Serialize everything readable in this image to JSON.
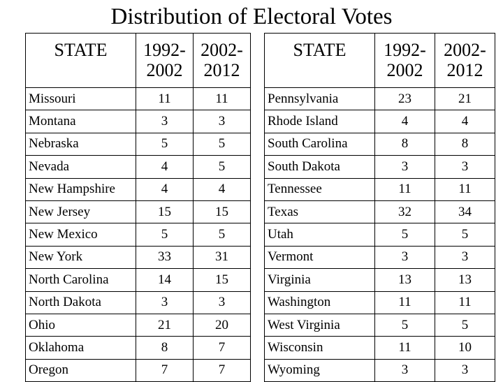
{
  "title": "Distribution of Electoral Votes",
  "headers": {
    "state": "STATE",
    "period1": "1992- 2002",
    "period2": "2002- 2012"
  },
  "left_rows": [
    {
      "state": "Missouri",
      "v1": "11",
      "v2": "11"
    },
    {
      "state": "Montana",
      "v1": "3",
      "v2": "3"
    },
    {
      "state": "Nebraska",
      "v1": "5",
      "v2": "5"
    },
    {
      "state": "Nevada",
      "v1": "4",
      "v2": "5"
    },
    {
      "state": "New Hampshire",
      "v1": "4",
      "v2": "4"
    },
    {
      "state": "New Jersey",
      "v1": "15",
      "v2": "15"
    },
    {
      "state": "New Mexico",
      "v1": "5",
      "v2": "5"
    },
    {
      "state": "New York",
      "v1": "33",
      "v2": "31"
    },
    {
      "state": "North Carolina",
      "v1": "14",
      "v2": "15"
    },
    {
      "state": "North Dakota",
      "v1": "3",
      "v2": "3"
    },
    {
      "state": "Ohio",
      "v1": "21",
      "v2": "20"
    },
    {
      "state": "Oklahoma",
      "v1": "8",
      "v2": "7"
    },
    {
      "state": "Oregon",
      "v1": "7",
      "v2": "7"
    }
  ],
  "right_rows": [
    {
      "state": "Pennsylvania",
      "v1": "23",
      "v2": "21"
    },
    {
      "state": "Rhode Island",
      "v1": "4",
      "v2": "4"
    },
    {
      "state": "South Carolina",
      "v1": "8",
      "v2": "8"
    },
    {
      "state": "South Dakota",
      "v1": "3",
      "v2": "3"
    },
    {
      "state": "Tennessee",
      "v1": "11",
      "v2": "11"
    },
    {
      "state": "Texas",
      "v1": "32",
      "v2": "34"
    },
    {
      "state": "Utah",
      "v1": "5",
      "v2": "5"
    },
    {
      "state": "Vermont",
      "v1": "3",
      "v2": "3"
    },
    {
      "state": "Virginia",
      "v1": "13",
      "v2": "13"
    },
    {
      "state": "Washington",
      "v1": "11",
      "v2": "11"
    },
    {
      "state": "West Virginia",
      "v1": "5",
      "v2": "5"
    },
    {
      "state": "Wisconsin",
      "v1": "11",
      "v2": "10"
    },
    {
      "state": "Wyoming",
      "v1": "3",
      "v2": "3"
    }
  ]
}
